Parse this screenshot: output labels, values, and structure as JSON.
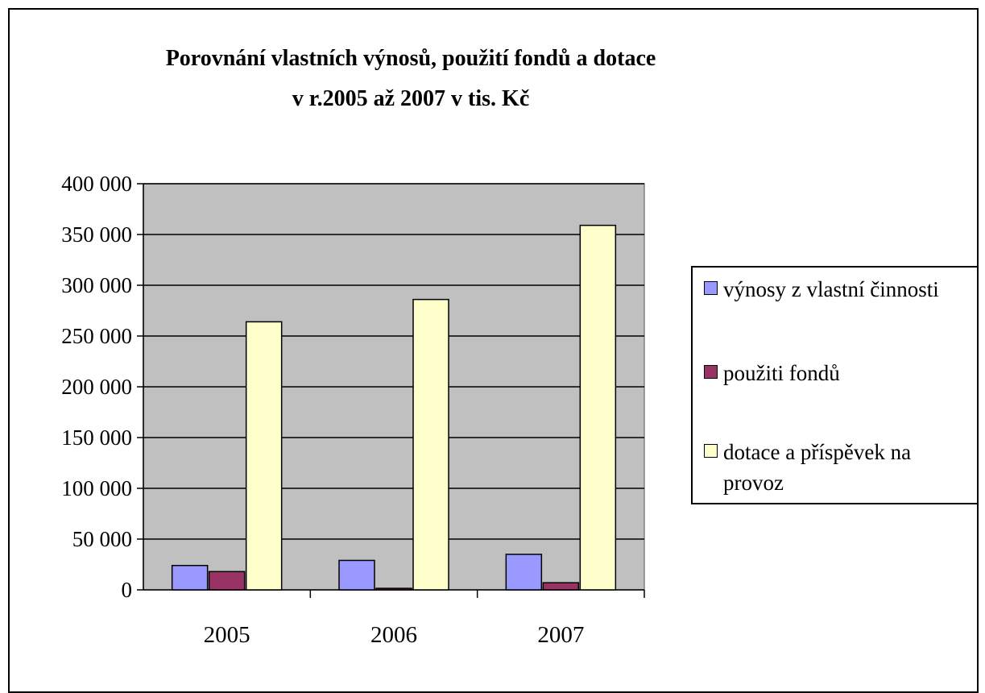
{
  "chart_data": {
    "type": "bar",
    "title": [
      "Porovnání vlastních výnosů, použití fondů a dotace",
      "v r.2005 až 2007 v tis. Kč"
    ],
    "categories": [
      "2005",
      "2006",
      "2007"
    ],
    "series": [
      {
        "name": "výnosy z vlastní činnosti",
        "color": "#9999ff",
        "values": [
          24000,
          29000,
          35000
        ]
      },
      {
        "name": "použiti fondů",
        "color": "#993366",
        "values": [
          18000,
          1500,
          7000
        ]
      },
      {
        "name": "dotace a příspěvek na provoz",
        "color": "#ffffcc",
        "values": [
          264000,
          286000,
          359000
        ]
      }
    ],
    "ylim": [
      0,
      400000
    ],
    "yticks": [
      0,
      50000,
      100000,
      150000,
      200000,
      250000,
      300000,
      350000,
      400000
    ],
    "ytick_labels": [
      "0",
      "50 000",
      "100 000",
      "150 000",
      "200 000",
      "250 000",
      "300 000",
      "350 000",
      "400 000"
    ],
    "grid": true,
    "plot_background": "#c0c0c0",
    "legend_position": "right"
  }
}
